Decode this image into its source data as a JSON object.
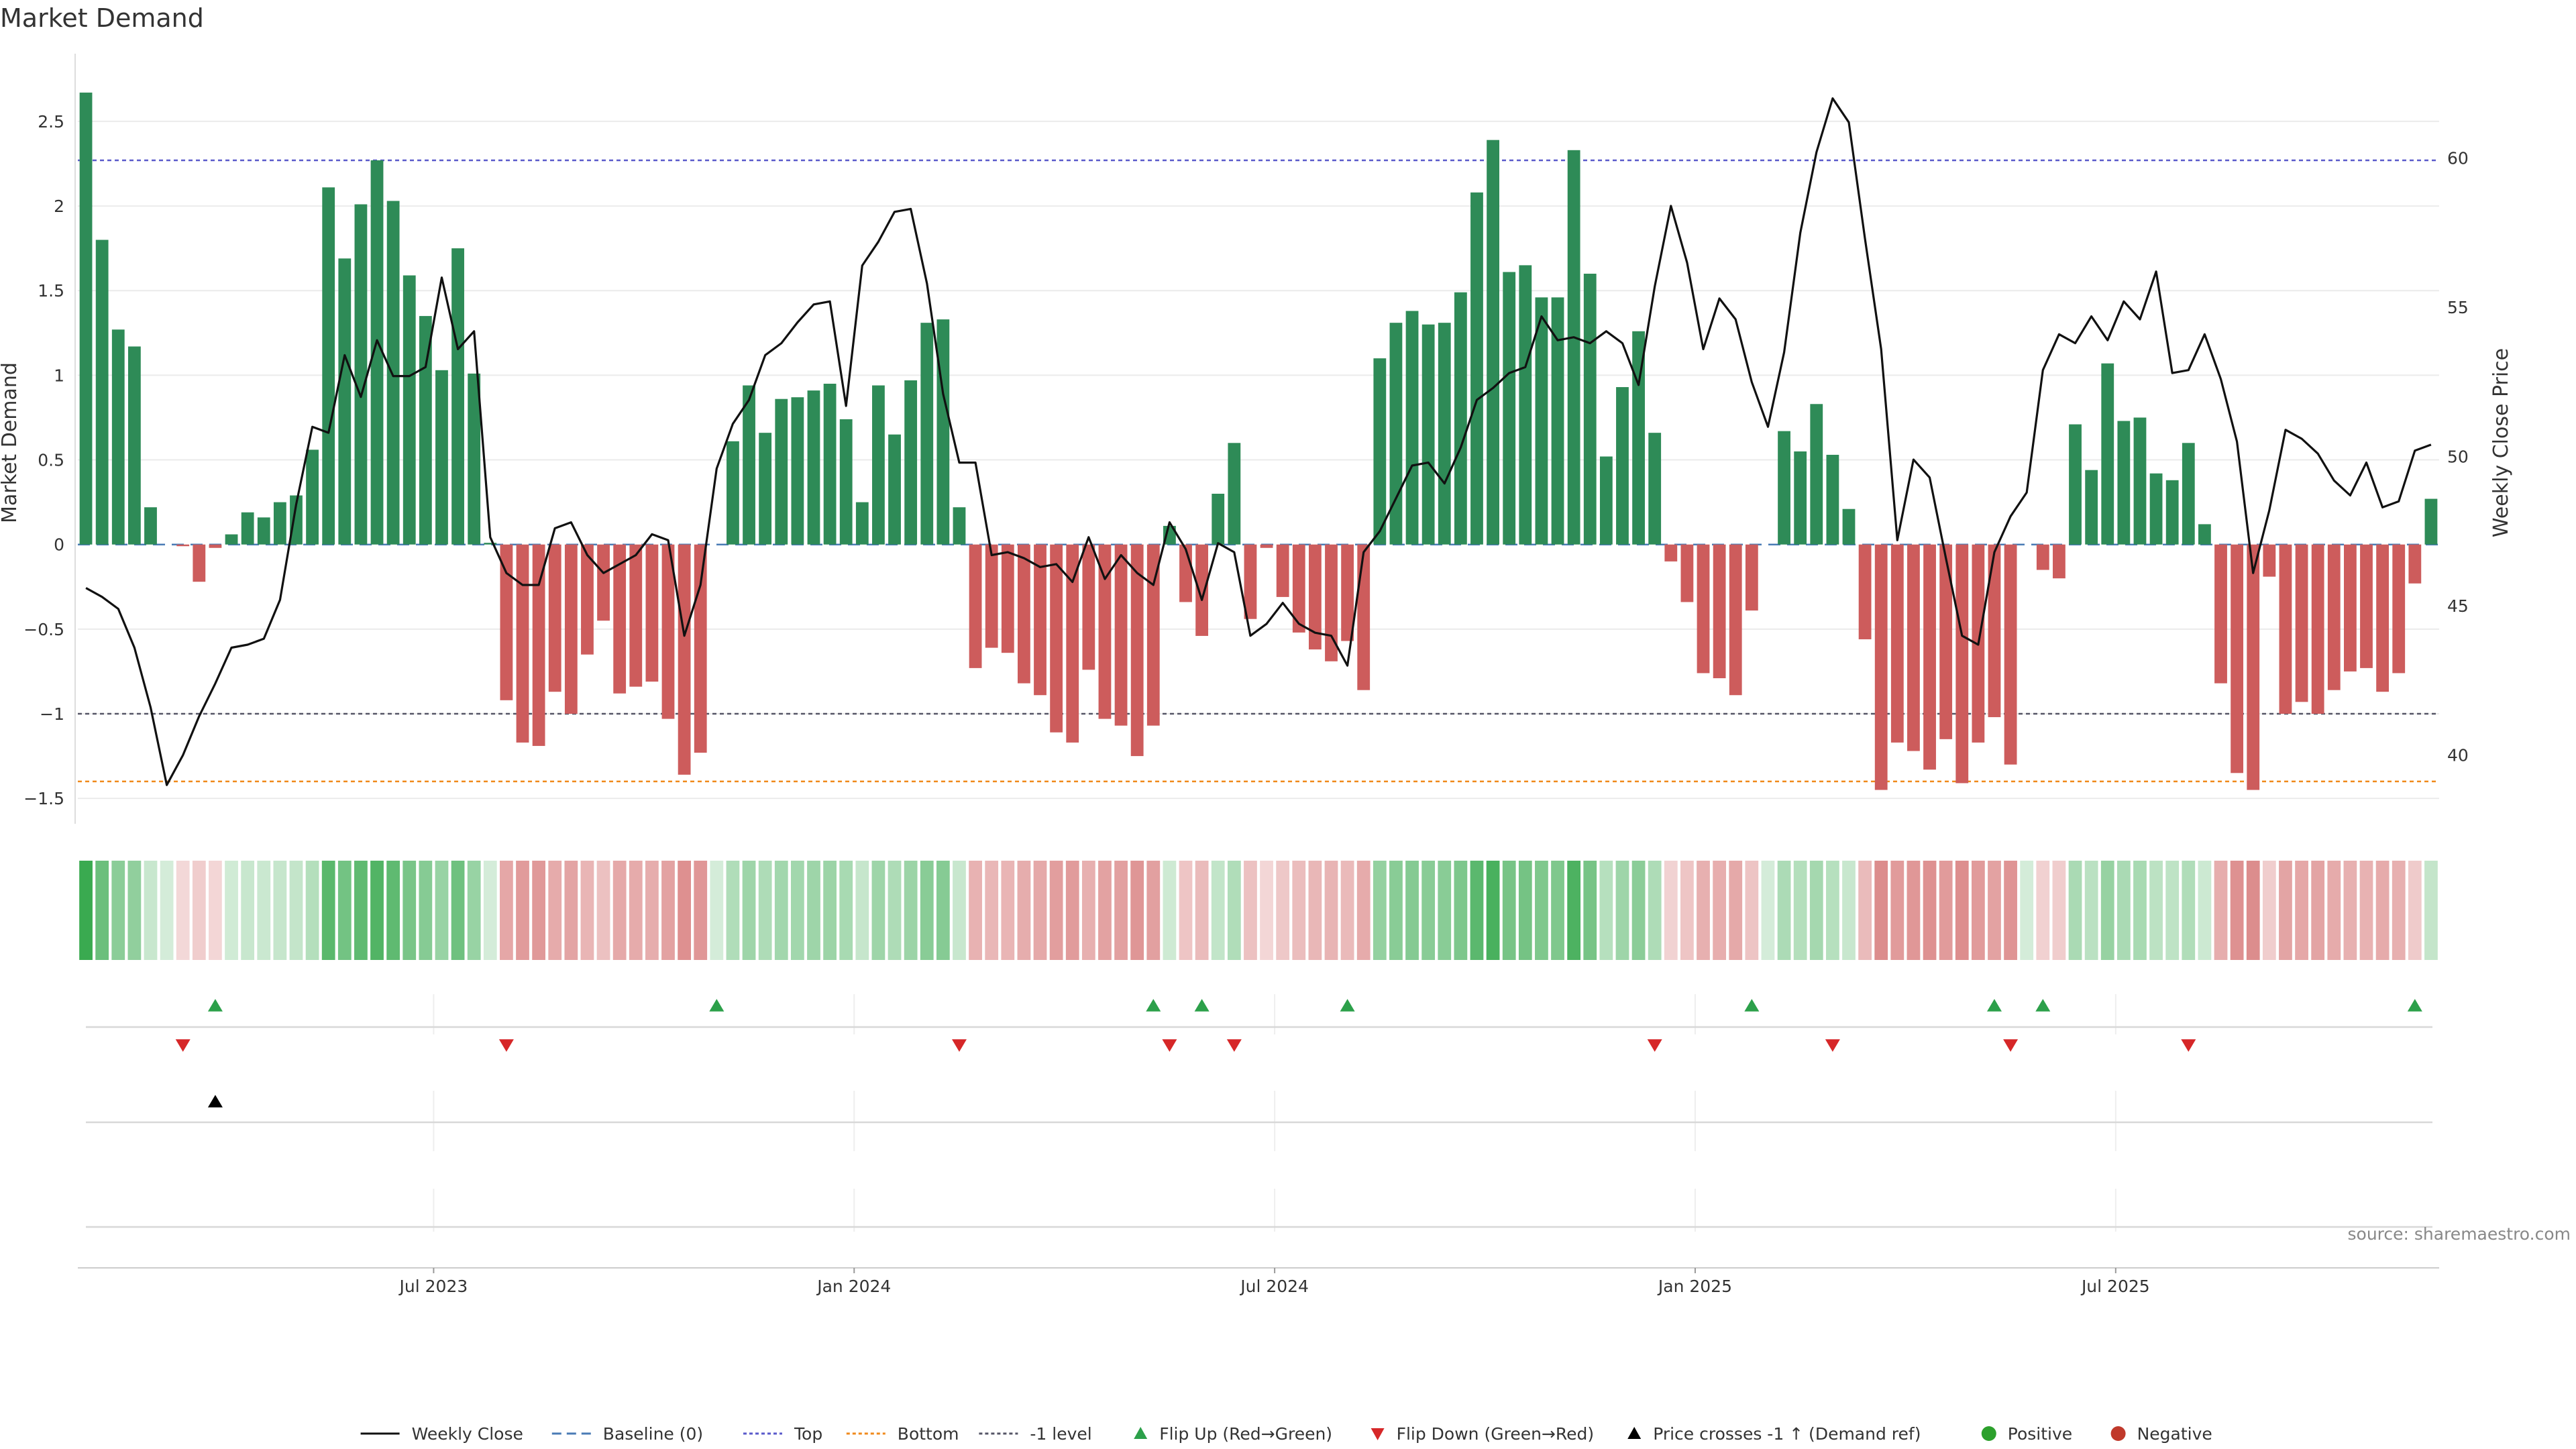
{
  "chart_data": {
    "type": "bar",
    "title": "Market Demand",
    "ylabel": "Market Demand",
    "y2label": "Weekly Close Price",
    "ylim": [
      -1.65,
      2.9
    ],
    "y2lim": [
      37.7,
      63.5
    ],
    "yticks": [
      2.5,
      2,
      1.5,
      1,
      0.5,
      0,
      -0.5,
      -1,
      -1.5
    ],
    "yticklabels": [
      "2.5",
      "2",
      "1.5",
      "1",
      "0.5",
      "0",
      "−0.5",
      "−1",
      "−1.5"
    ],
    "y2ticks": [
      60,
      55,
      50,
      45,
      40
    ],
    "y2ticklabels": [
      "60",
      "55",
      "50",
      "45",
      "40"
    ],
    "xticklabels": [
      "Jul 2023",
      "Jan 2024",
      "Jul 2024",
      "Jan 2025",
      "Jul 2025"
    ],
    "xtick_index": [
      21.5,
      47.5,
      73.5,
      99.5,
      125.5
    ],
    "reference_lines": {
      "baseline": 0,
      "top": 2.27,
      "bottom": -1.4,
      "minus_one": -1
    },
    "series": [
      {
        "name": "Market Demand",
        "values": [
          2.67,
          1.8,
          1.27,
          1.17,
          0.22,
          0,
          -0.01,
          -0.22,
          -0.02,
          0.06,
          0.19,
          0.16,
          0.25,
          0.29,
          0.56,
          2.11,
          1.69,
          2.01,
          2.27,
          2.03,
          1.59,
          1.35,
          1.03,
          1.75,
          1.01,
          0.01,
          -0.92,
          -1.17,
          -1.19,
          -0.87,
          -1.0,
          -0.65,
          -0.45,
          -0.88,
          -0.84,
          -0.81,
          -1.03,
          -1.36,
          -1.23,
          0.0,
          0.61,
          0.94,
          0.66,
          0.86,
          0.87,
          0.91,
          0.95,
          0.74,
          0.25,
          0.94,
          0.65,
          0.97,
          1.31,
          1.33,
          0.22,
          -0.73,
          -0.61,
          -0.64,
          -0.82,
          -0.89,
          -1.11,
          -1.17,
          -0.74,
          -1.03,
          -1.07,
          -1.25,
          -1.07,
          0.11,
          -0.34,
          -0.54,
          0.3,
          0.6,
          -0.44,
          -0.02,
          -0.31,
          -0.52,
          -0.62,
          -0.69,
          -0.57,
          -0.86,
          1.1,
          1.31,
          1.38,
          1.3,
          1.31,
          1.49,
          2.08,
          2.39,
          1.61,
          1.65,
          1.46,
          1.46,
          2.33,
          1.6,
          0.52,
          0.93,
          1.26,
          0.66,
          -0.1,
          -0.34,
          -0.76,
          -0.79,
          -0.89,
          -0.39,
          0,
          0.67,
          0.55,
          0.83,
          0.53,
          0.21,
          -0.56,
          -1.45,
          -1.17,
          -1.22,
          -1.33,
          -1.15,
          -1.41,
          -1.17,
          -1.02,
          -1.3,
          0.0,
          -0.15,
          -0.2,
          0.71,
          0.44,
          1.07,
          0.73,
          0.75,
          0.42,
          0.38,
          0.6,
          0.12,
          -0.82,
          -1.35,
          -1.45,
          -0.19,
          -1.0,
          -0.93,
          -1.0,
          -0.86,
          -0.75,
          -0.73,
          -0.87,
          -0.76,
          -0.23,
          0.27
        ]
      },
      {
        "name": "Weekly Close",
        "values": [
          45.6,
          45.3,
          44.9,
          43.6,
          41.6,
          39.0,
          40.0,
          41.3,
          42.4,
          43.6,
          43.7,
          43.9,
          45.2,
          48.4,
          51.0,
          50.8,
          53.4,
          52.0,
          53.9,
          52.7,
          52.7,
          53.0,
          56.0,
          53.6,
          54.2,
          47.3,
          46.1,
          45.7,
          45.7,
          47.6,
          47.8,
          46.7,
          46.1,
          46.4,
          46.7,
          47.4,
          47.2,
          44.0,
          45.7,
          49.6,
          51.1,
          51.9,
          53.4,
          53.8,
          54.5,
          55.1,
          55.2,
          51.7,
          56.4,
          57.2,
          58.2,
          58.3,
          55.8,
          52.1,
          49.8,
          49.8,
          46.7,
          46.8,
          46.6,
          46.3,
          46.4,
          45.8,
          47.3,
          45.9,
          46.7,
          46.1,
          45.7,
          47.8,
          46.9,
          45.2,
          47.1,
          46.8,
          44.0,
          44.4,
          45.1,
          44.4,
          44.1,
          44.0,
          43.0,
          46.8,
          47.5,
          48.6,
          49.7,
          49.8,
          49.1,
          50.3,
          51.9,
          52.3,
          52.8,
          53.0,
          54.7,
          53.9,
          54.0,
          53.8,
          54.2,
          53.8,
          52.4,
          55.7,
          58.4,
          56.5,
          53.6,
          55.3,
          54.6,
          52.5,
          51.0,
          53.5,
          57.5,
          60.2,
          62.0,
          61.2,
          57.3,
          53.6,
          47.2,
          49.9,
          49.3,
          46.6,
          44.0,
          43.7,
          46.8,
          48.0,
          48.8,
          52.9,
          54.1,
          53.8,
          54.7,
          53.9,
          55.2,
          54.6,
          56.2,
          52.8,
          52.9,
          54.1,
          52.6,
          50.5,
          46.1,
          48.2,
          50.9,
          50.6,
          50.1,
          49.2,
          48.7,
          49.8,
          48.3,
          48.5,
          50.2,
          50.4
        ]
      }
    ],
    "flip_up_index": [
      8,
      39,
      66,
      69,
      78,
      103,
      118,
      121,
      144
    ],
    "flip_down_index": [
      6,
      26,
      54,
      67,
      71,
      97,
      108,
      119,
      130
    ],
    "price_cross_index": [
      8
    ],
    "legend": [
      {
        "label": "Weekly Close",
        "kind": "line-solid",
        "color": "#111111"
      },
      {
        "label": "Baseline (0)",
        "kind": "line-dash",
        "color": "#4a7bb5"
      },
      {
        "label": "Top",
        "kind": "line-dot",
        "color": "#5a5acb"
      },
      {
        "label": "Bottom",
        "kind": "line-dot",
        "color": "#f08a1c"
      },
      {
        "label": "-1 level",
        "kind": "line-dot",
        "color": "#555566"
      },
      {
        "label": "Flip Up (Red→Green)",
        "kind": "tri-up",
        "color": "#2ca04a"
      },
      {
        "label": "Flip Down (Green→Red)",
        "kind": "tri-down",
        "color": "#d62728"
      },
      {
        "label": "Price crosses -1 ↑ (Demand ref)",
        "kind": "tri-up",
        "color": "#000000"
      },
      {
        "label": "Positive",
        "kind": "dot",
        "color": "#2ca02c"
      },
      {
        "label": "Negative",
        "kind": "dot",
        "color": "#c0392b"
      }
    ],
    "source": "source: sharemaestro.com"
  },
  "colors": {
    "positive_bar": "#2e8b57",
    "negative_bar": "#cd5c5c",
    "price_line": "#111111",
    "heat_positive": "#3aaa50",
    "heat_negative": "#c94c4c"
  }
}
